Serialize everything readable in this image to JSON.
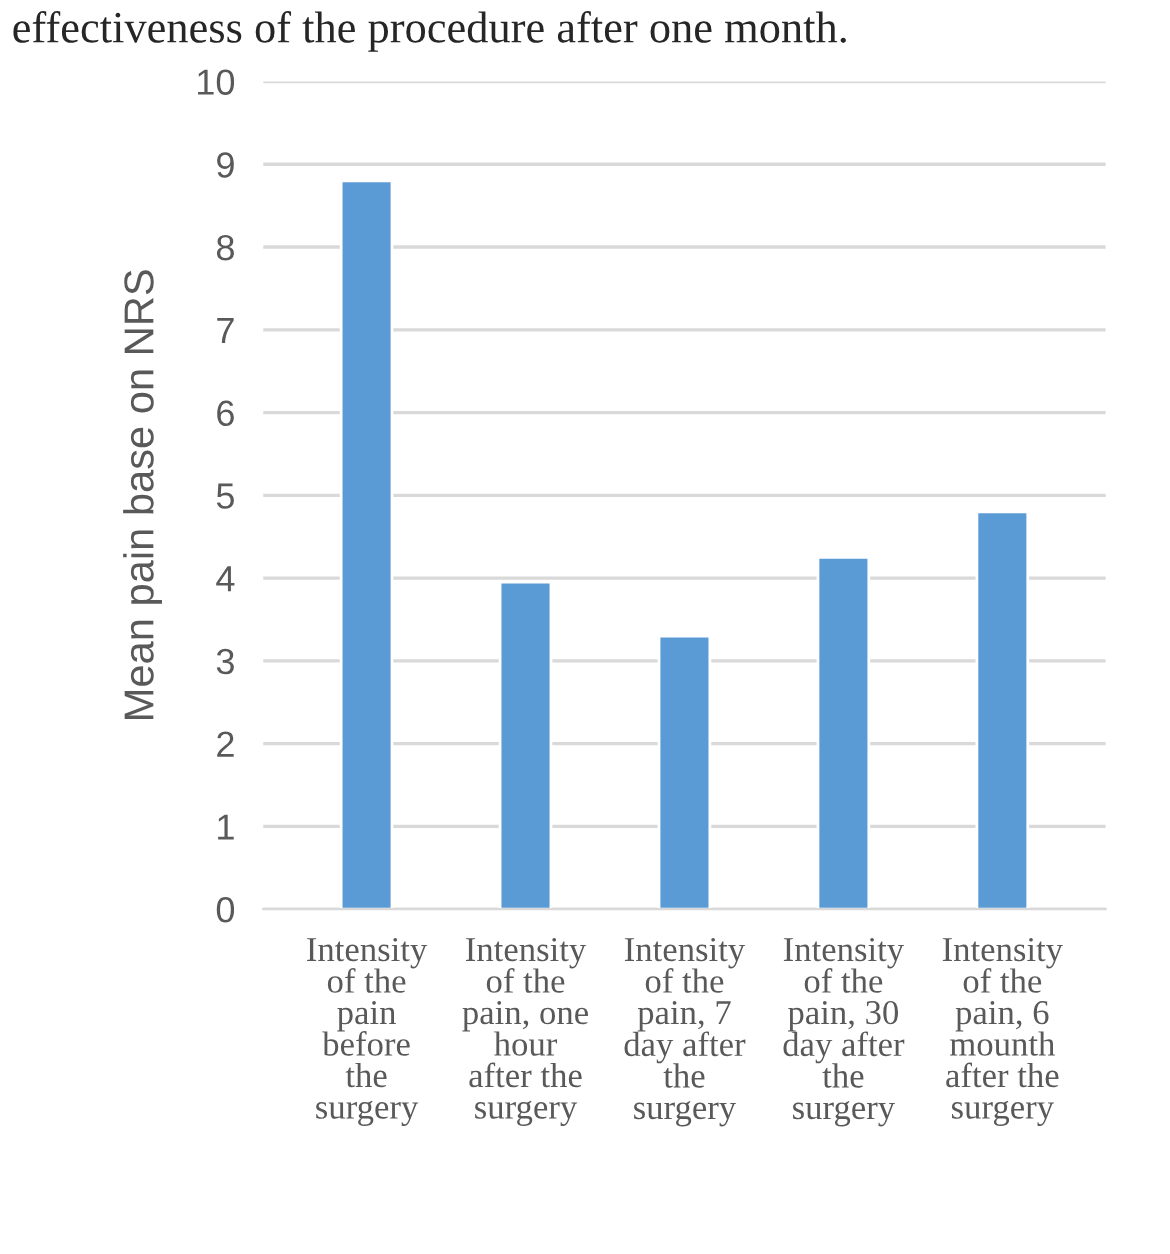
{
  "chart_data": {
    "type": "bar",
    "ylabel": "Mean pain base on NRS",
    "categories": [
      "Intensity of the pain before the surgery",
      "Intensity of the pain, one hour after the surgery",
      "Intensity of the pain, 7 day after the surgery",
      "Intensity of the pain, 30 day after the surgery",
      "Intensity of the pain, 6 mounth after the surgery"
    ],
    "values": [
      8.8,
      3.95,
      3.3,
      4.25,
      4.8
    ],
    "color": "#5b9bd5",
    "ylim": [
      0,
      10
    ],
    "yticks": [
      0,
      1,
      2,
      3,
      4,
      5,
      6,
      7,
      8,
      9,
      10
    ],
    "grid": "y",
    "annotations": [
      "effectiveness of the procedure after one month."
    ]
  }
}
